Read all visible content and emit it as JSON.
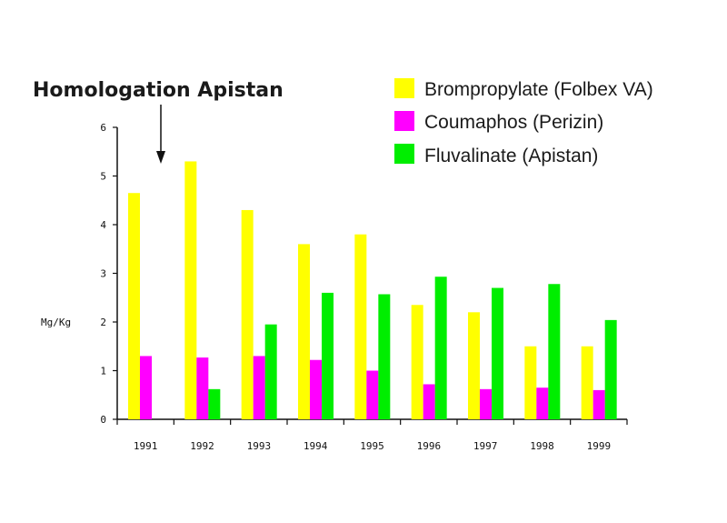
{
  "chart_data": {
    "type": "bar",
    "title": "",
    "annotation": {
      "text": "Homologation Apistan",
      "points_to": "1991"
    },
    "ylabel": "Mg/Kg",
    "xlabel": "",
    "ylim": [
      0,
      6
    ],
    "yticks": [
      "0",
      "1",
      "2",
      "3",
      "4",
      "5",
      "6"
    ],
    "categories": [
      "1991",
      "1992",
      "1993",
      "1994",
      "1995",
      "1996",
      "1997",
      "1998",
      "1999"
    ],
    "series": [
      {
        "name": "Brompropylate (Folbex VA)",
        "color": "#ffff00",
        "values": [
          4.65,
          5.3,
          4.3,
          3.6,
          3.8,
          2.35,
          2.2,
          1.5,
          1.5
        ]
      },
      {
        "name": "Coumaphos (Perizin)",
        "color": "#ff00ff",
        "values": [
          1.3,
          1.27,
          1.3,
          1.22,
          1.0,
          0.72,
          0.62,
          0.65,
          0.6
        ]
      },
      {
        "name": "Fluvalinate (Apistan)",
        "color": "#00ee00",
        "values": [
          null,
          0.62,
          1.95,
          2.6,
          2.57,
          2.93,
          2.7,
          2.78,
          2.04
        ]
      }
    ],
    "legend_position": "top-right",
    "grid": false
  }
}
